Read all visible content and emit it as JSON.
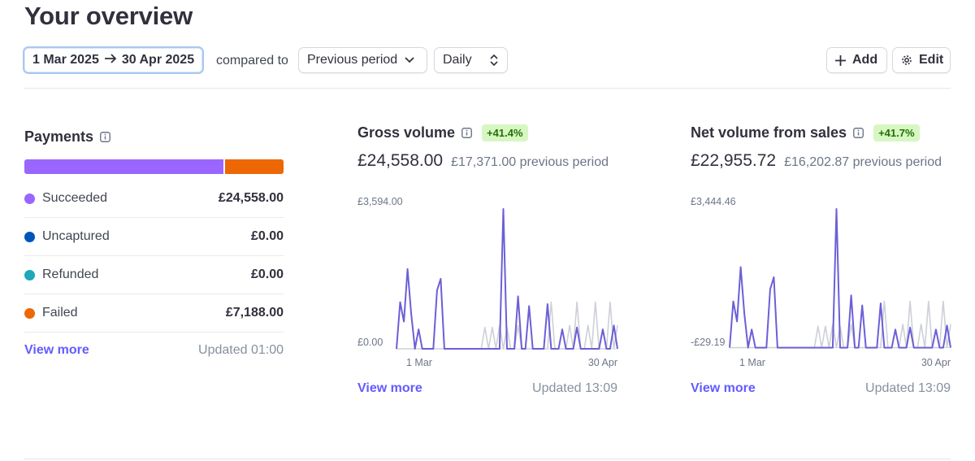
{
  "header": {
    "title": "Your overview"
  },
  "toolbar": {
    "date_start": "1 Mar 2025",
    "date_end": "30 Apr 2025",
    "compared_to_label": "compared to",
    "comparison": "Previous period",
    "interval": "Daily",
    "add_label": "Add",
    "edit_label": "Edit"
  },
  "payments": {
    "title": "Payments",
    "bar_fractions": {
      "succeeded": 0.774,
      "failed": 0.226
    },
    "rows": [
      {
        "label": "Succeeded",
        "value": "£24,558.00",
        "color": "#9966ff"
      },
      {
        "label": "Uncaptured",
        "value": "£0.00",
        "color": "#0055bc"
      },
      {
        "label": "Refunded",
        "value": "£0.00",
        "color": "#1ea8b8"
      },
      {
        "label": "Failed",
        "value": "£7,188.00",
        "color": "#ed6704"
      }
    ],
    "view_more": "View more",
    "updated": "Updated 01:00"
  },
  "gross": {
    "title": "Gross volume",
    "badge": "+41.4%",
    "amount": "£24,558.00",
    "previous": "£17,371.00 previous period",
    "view_more": "View more",
    "updated": "Updated 13:09"
  },
  "net": {
    "title": "Net volume from sales",
    "badge": "+41.7%",
    "amount": "£22,955.72",
    "previous": "£16,202.87 previous period",
    "view_more": "View more",
    "updated": "Updated 13:09"
  },
  "chart_data": [
    {
      "type": "line",
      "title": "Gross volume",
      "x_start_label": "1 Mar",
      "x_end_label": "30 Apr",
      "y_max_label": "£3,594.00",
      "y_min_label": "£0.00",
      "ylim": [
        0,
        3594
      ],
      "series": [
        {
          "color": "#cdd0d6",
          "values": [
            0,
            0,
            0,
            0,
            0,
            0,
            0,
            0,
            0,
            0,
            0,
            0,
            0,
            0,
            0,
            0,
            0,
            0,
            0,
            0,
            0,
            0,
            0,
            0,
            550,
            0,
            550,
            0,
            600,
            0,
            550,
            0,
            0,
            600,
            0,
            0,
            0,
            0,
            0,
            0,
            0,
            0,
            1200,
            0,
            0,
            0,
            0,
            600,
            0,
            1200,
            0,
            0,
            600,
            0,
            1200,
            0,
            0,
            0,
            1200,
            0,
            600
          ]
        },
        {
          "color": "#6c5fd6",
          "values": [
            0,
            1200,
            700,
            2050,
            900,
            0,
            500,
            0,
            0,
            0,
            0,
            1500,
            1800,
            0,
            0,
            0,
            0,
            0,
            0,
            0,
            0,
            0,
            0,
            0,
            0,
            0,
            0,
            0,
            0,
            3594,
            0,
            0,
            0,
            1350,
            0,
            0,
            1100,
            0,
            0,
            0,
            0,
            1150,
            0,
            0,
            0,
            500,
            0,
            0,
            0,
            550,
            0,
            0,
            0,
            0,
            0,
            0,
            500,
            0,
            0,
            600,
            0
          ]
        }
      ]
    },
    {
      "type": "line",
      "title": "Net volume from sales",
      "x_start_label": "1 Mar",
      "x_end_label": "30 Apr",
      "y_max_label": "£3,444.46",
      "y_min_label": "-£29.19",
      "ylim": [
        -29.19,
        3444.46
      ],
      "series": [
        {
          "color": "#cdd0d6",
          "values": [
            0,
            0,
            0,
            0,
            0,
            0,
            0,
            0,
            0,
            0,
            0,
            0,
            0,
            0,
            0,
            0,
            0,
            0,
            0,
            0,
            0,
            0,
            0,
            0,
            530,
            0,
            530,
            0,
            580,
            0,
            530,
            0,
            0,
            580,
            0,
            0,
            0,
            0,
            0,
            0,
            0,
            0,
            1150,
            0,
            0,
            0,
            0,
            580,
            0,
            1150,
            0,
            0,
            580,
            0,
            1150,
            0,
            0,
            0,
            1150,
            0,
            580
          ]
        },
        {
          "color": "#6c5fd6",
          "values": [
            0,
            1150,
            650,
            2000,
            850,
            0,
            450,
            0,
            0,
            0,
            0,
            1450,
            1750,
            0,
            0,
            0,
            0,
            0,
            0,
            0,
            0,
            0,
            0,
            0,
            0,
            0,
            0,
            0,
            0,
            3444,
            0,
            0,
            0,
            1300,
            0,
            0,
            1050,
            0,
            0,
            0,
            0,
            1100,
            0,
            0,
            0,
            450,
            0,
            0,
            0,
            500,
            0,
            0,
            0,
            0,
            0,
            0,
            450,
            0,
            0,
            550,
            0
          ]
        }
      ]
    }
  ]
}
